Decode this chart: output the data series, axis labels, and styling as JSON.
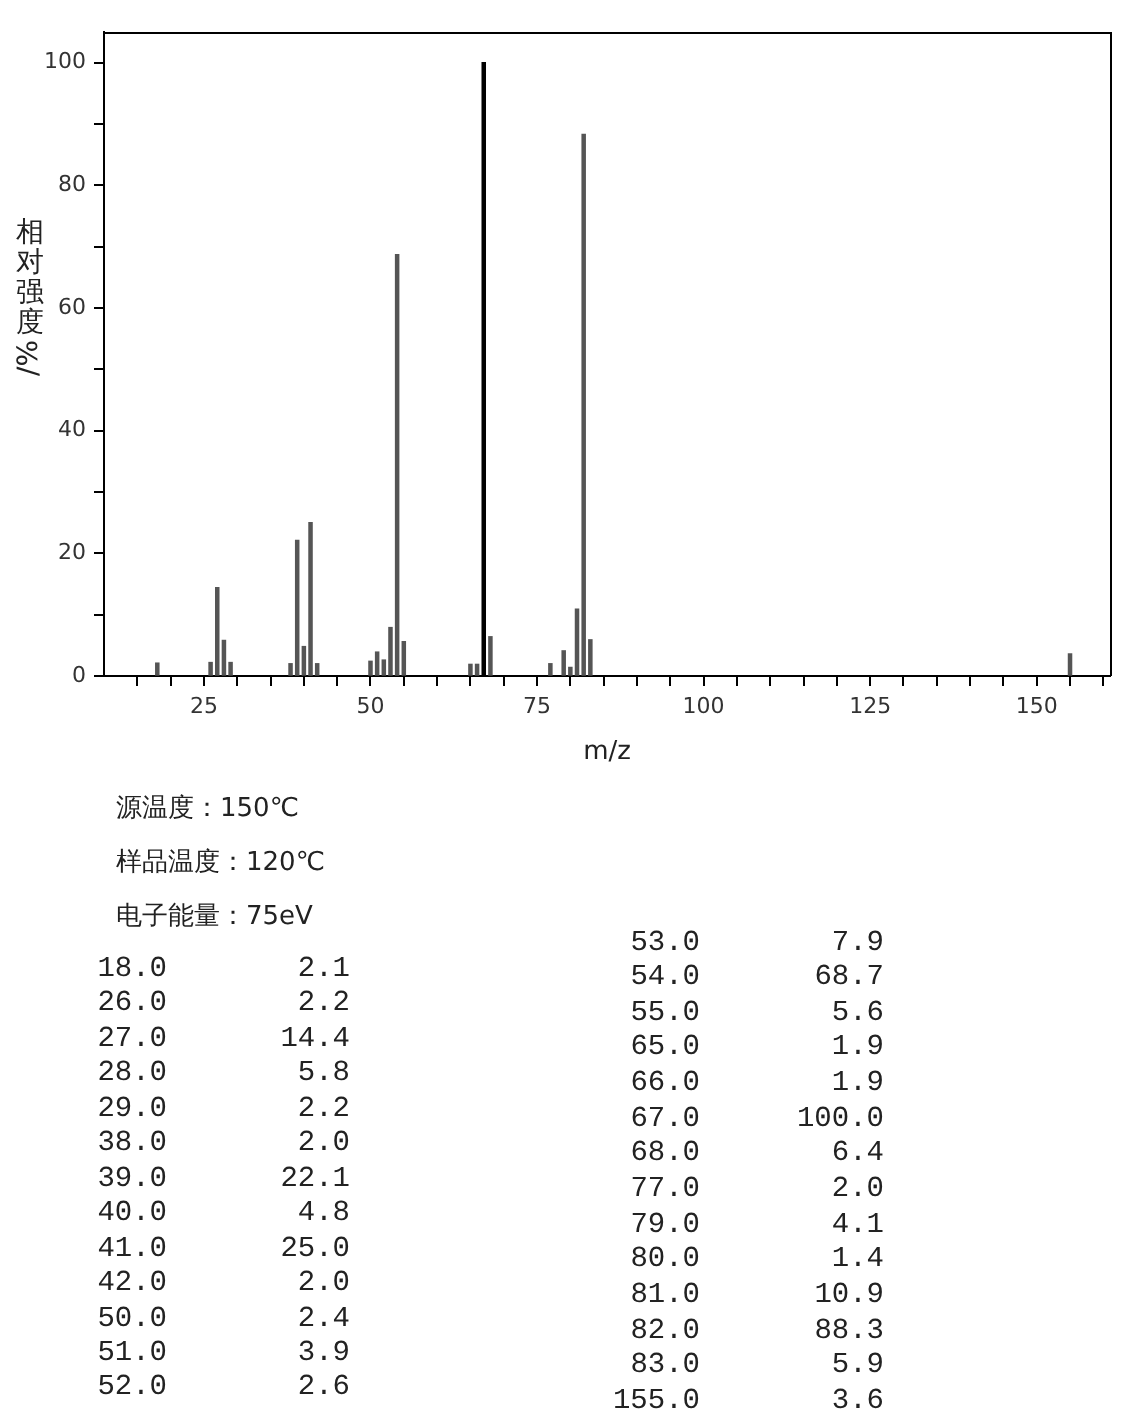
{
  "chart_data": [
    {
      "type": "bar",
      "xlabel": "m/z",
      "ylabel": "相对强度/%",
      "x": [
        18,
        26,
        27,
        28,
        29,
        38,
        39,
        40,
        41,
        42,
        50,
        51,
        52,
        53,
        54,
        55,
        65,
        66,
        67,
        68,
        77,
        79,
        80,
        81,
        82,
        83,
        155
      ],
      "values": [
        2.1,
        2.2,
        14.4,
        5.8,
        2.2,
        2.0,
        22.1,
        4.8,
        25.0,
        2.0,
        2.4,
        3.9,
        2.6,
        7.9,
        68.7,
        5.6,
        1.9,
        1.9,
        100.0,
        6.4,
        2.0,
        4.1,
        1.4,
        10.9,
        88.3,
        5.9,
        3.6
      ],
      "colors": [
        "#555555",
        "#555555",
        "#555555",
        "#555555",
        "#555555",
        "#555555",
        "#555555",
        "#555555",
        "#555555",
        "#555555",
        "#555555",
        "#555555",
        "#555555",
        "#555555",
        "#555555",
        "#555555",
        "#555555",
        "#555555",
        "#000000",
        "#555555",
        "#555555",
        "#555555",
        "#555555",
        "#555555",
        "#555555",
        "#555555",
        "#555555"
      ],
      "xlim": [
        10,
        161
      ],
      "xticks": [
        {
          "value": 15,
          "label": null
        },
        {
          "value": 20,
          "label": null
        },
        25,
        {
          "value": 30,
          "label": null
        },
        {
          "value": 35,
          "label": null
        },
        {
          "value": 40,
          "label": null
        },
        {
          "value": 45,
          "label": null
        },
        50,
        {
          "value": 55,
          "label": null
        },
        {
          "value": 60,
          "label": null
        },
        {
          "value": 65,
          "label": null
        },
        {
          "value": 70,
          "label": null
        },
        75,
        {
          "value": 80,
          "label": null
        },
        {
          "value": 85,
          "label": null
        },
        {
          "value": 90,
          "label": null
        },
        {
          "value": 95,
          "label": null
        },
        100,
        {
          "value": 105,
          "label": null
        },
        {
          "value": 110,
          "label": null
        },
        {
          "value": 115,
          "label": null
        },
        {
          "value": 120,
          "label": null
        },
        125,
        {
          "value": 130,
          "label": null
        },
        {
          "value": 135,
          "label": null
        },
        {
          "value": 140,
          "label": null
        },
        {
          "value": 145,
          "label": null
        },
        150,
        {
          "value": 155,
          "label": null
        },
        {
          "value": 160,
          "label": null
        }
      ],
      "ylim": [
        0,
        105
      ],
      "yticks": [
        0,
        {
          "value": 10,
          "label": null
        },
        20,
        {
          "value": 30,
          "label": null
        },
        40,
        {
          "value": 50,
          "label": null
        },
        60,
        {
          "value": 70,
          "label": null
        },
        80,
        {
          "value": 90,
          "label": null
        },
        100
      ],
      "annotations": [
        "源温度：150℃",
        "样品温度：120℃",
        "电子能量：75eV"
      ]
    },
    {
      "type": "other",
      "annotations": [
        "18.0",
        "2.1",
        "26.0",
        "2.2",
        "27.0",
        "14.4",
        "28.0",
        "5.8",
        "29.0",
        "2.2",
        "38.0",
        "2.0",
        "39.0",
        "22.1",
        "40.0",
        "4.8",
        "41.0",
        "25.0",
        "42.0",
        "2.0",
        "50.0",
        "2.4",
        "51.0",
        "3.9",
        "52.0",
        "2.6",
        "53.0",
        "7.9",
        "54.0",
        "68.7",
        "55.0",
        "5.6",
        "65.0",
        "1.9",
        "66.0",
        "1.9",
        "67.0",
        "100.0",
        "68.0",
        "6.4",
        "77.0",
        "2.0",
        "79.0",
        "4.1",
        "80.0",
        "1.4",
        "81.0",
        "10.9",
        "82.0",
        "88.3",
        "83.0",
        "5.9",
        "155.0",
        "3.6"
      ]
    }
  ]
}
